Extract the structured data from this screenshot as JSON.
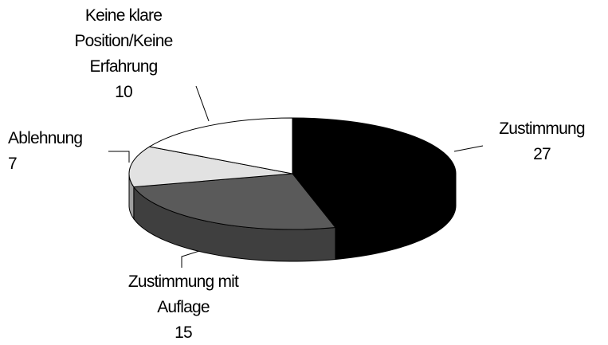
{
  "chart_data": {
    "type": "pie3d",
    "categories": [
      "Zustimmung",
      "Zustimmung mit Auflage",
      "Ablehnung",
      "Keine klare Position/Keine Erfahrung"
    ],
    "values": [
      27,
      15,
      7,
      10
    ],
    "colors": [
      "#000000",
      "#5a5a5a",
      "#e2e2e2",
      "#ffffff"
    ],
    "start_angle": 0,
    "direction": "clockwise"
  }
}
